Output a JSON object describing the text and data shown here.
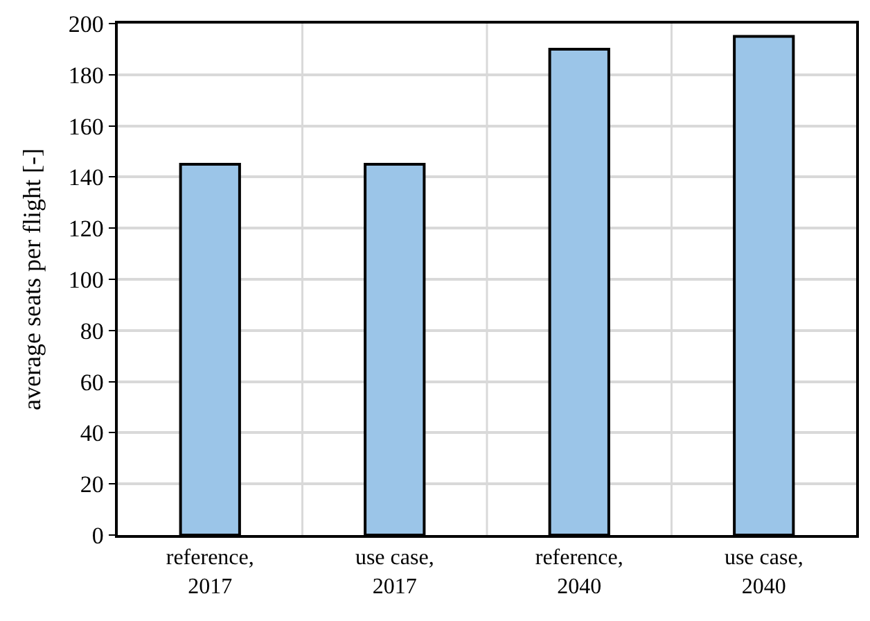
{
  "chart_data": {
    "type": "bar",
    "categories": [
      "reference,\n2017",
      "use case,\n2017",
      "reference,\n2040",
      "use case,\n2040"
    ],
    "values": [
      145,
      145,
      190,
      195
    ],
    "color": "#9bc5e8",
    "ylabel": "average seats per flight [-]",
    "ylim": [
      0,
      200
    ],
    "yticks": [
      0,
      20,
      40,
      60,
      80,
      100,
      120,
      140,
      160,
      180,
      200
    ],
    "grid": true
  }
}
